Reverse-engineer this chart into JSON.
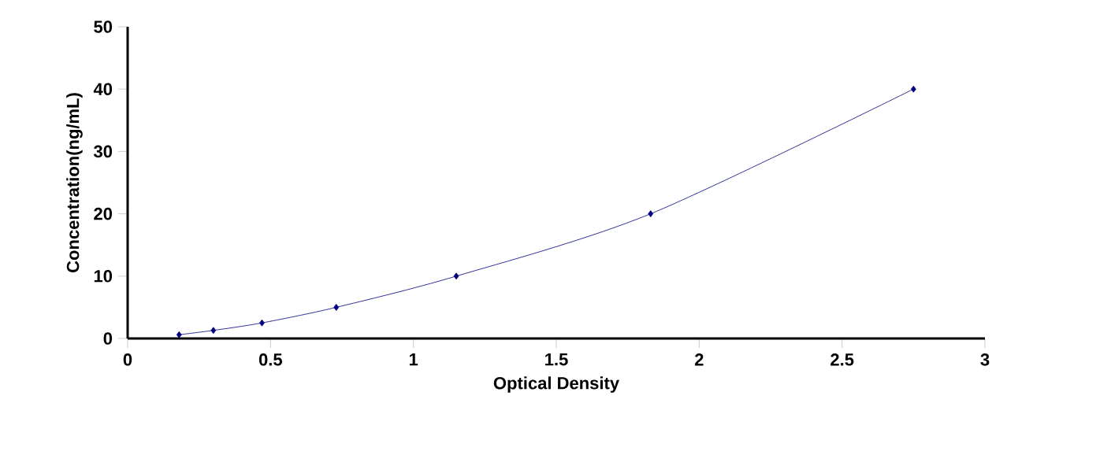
{
  "chart_data": {
    "type": "line",
    "xlabel": "Optical Density",
    "ylabel": "Concentration(ng/mL)",
    "x": [
      0.18,
      0.3,
      0.47,
      0.73,
      1.15,
      1.83,
      2.75
    ],
    "series": [
      {
        "color": "#000080",
        "values": [
          0.6,
          1.3,
          2.5,
          5,
          10,
          20,
          40
        ]
      }
    ],
    "xlim": [
      0,
      3
    ],
    "ylim": [
      0,
      50
    ],
    "xticks": [
      0,
      0.5,
      1,
      1.5,
      2,
      2.5,
      3
    ],
    "yticks": [
      0,
      10,
      20,
      30,
      40,
      50
    ],
    "marker": "diamond",
    "grid": false
  }
}
